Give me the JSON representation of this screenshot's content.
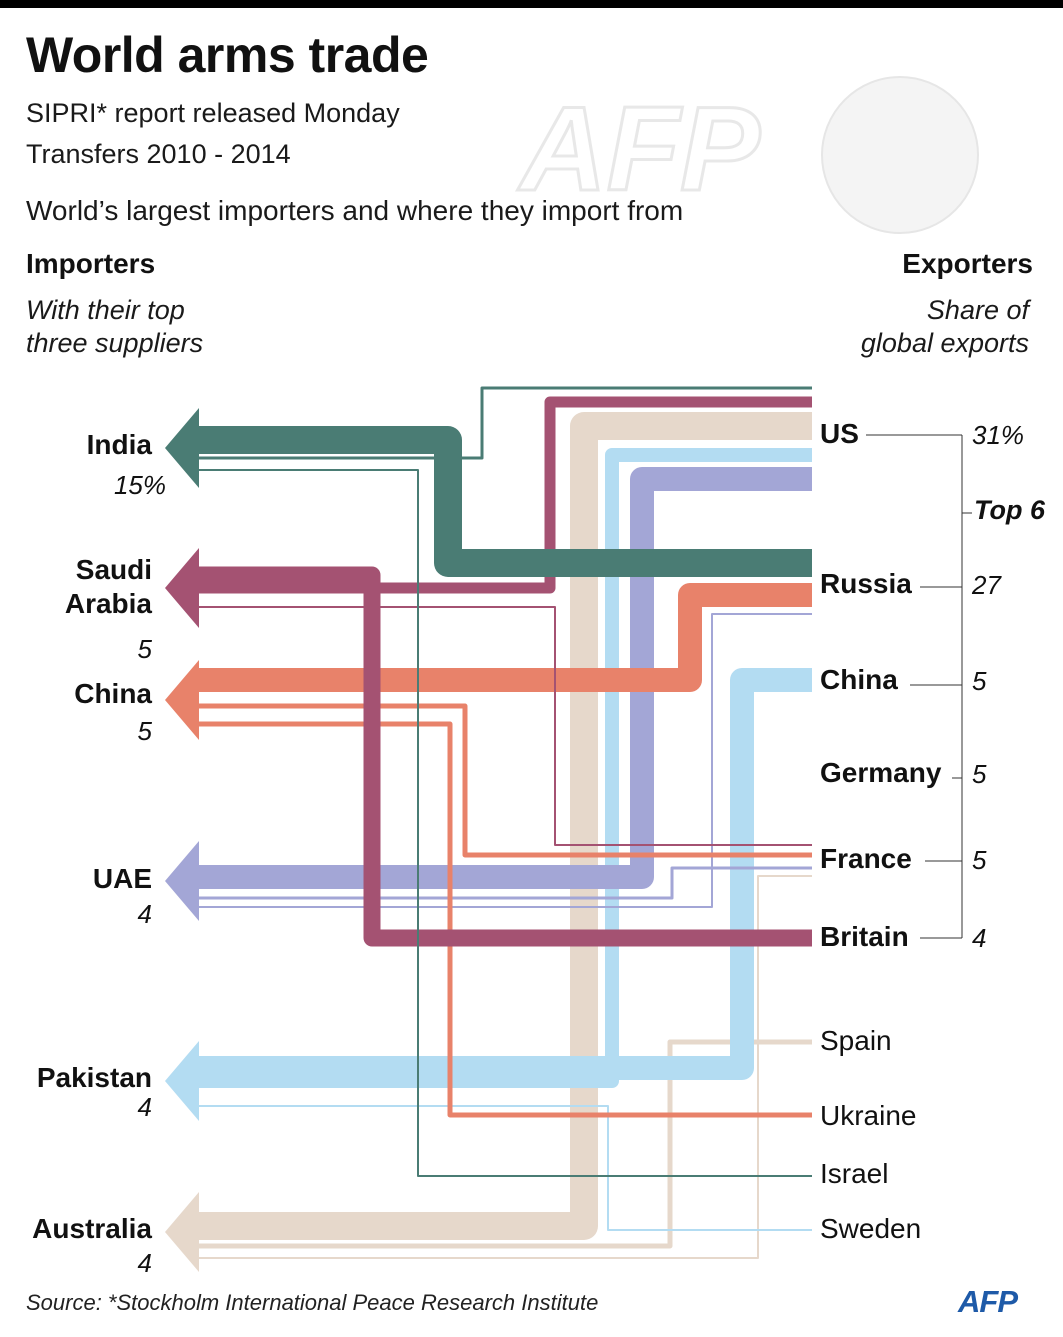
{
  "header": {
    "title": "World arms trade",
    "subtitle_1": "SIPRI* report released Monday",
    "subtitle_2": "Transfers 2010 - 2014",
    "subtitle_3": "World’s largest importers and where they import from"
  },
  "left_column": {
    "heading": "Importers",
    "note_line_1": "With their top",
    "note_line_2": "three suppliers"
  },
  "right_column": {
    "heading": "Exporters",
    "note_line_1": "Share of",
    "note_line_2": "global exports",
    "bracket_label": "Top 6"
  },
  "importers": [
    {
      "name_1": "India",
      "name_2": "",
      "share": "15%"
    },
    {
      "name_1": "Saudi",
      "name_2": "Arabia",
      "share": "5"
    },
    {
      "name_1": "China",
      "name_2": "",
      "share": "5"
    },
    {
      "name_1": "UAE",
      "name_2": "",
      "share": "4"
    },
    {
      "name_1": "Pakistan",
      "name_2": "",
      "share": "4"
    },
    {
      "name_1": "Australia",
      "name_2": "",
      "share": "4"
    }
  ],
  "exporters": [
    {
      "name": "US",
      "share": "31%",
      "top6": true
    },
    {
      "name": "Russia",
      "share": "27",
      "top6": true
    },
    {
      "name": "China",
      "share": "5",
      "top6": true
    },
    {
      "name": "Germany",
      "share": "5",
      "top6": true
    },
    {
      "name": "France",
      "share": "5",
      "top6": true
    },
    {
      "name": "Britain",
      "share": "4",
      "top6": true
    },
    {
      "name": "Spain",
      "share": "",
      "top6": false
    },
    {
      "name": "Ukraine",
      "share": "",
      "top6": false
    },
    {
      "name": "Israel",
      "share": "",
      "top6": false
    },
    {
      "name": "Sweden",
      "share": "",
      "top6": false
    }
  ],
  "flows": [
    {
      "importer": "India",
      "exporter": "Russia",
      "rank": 1
    },
    {
      "importer": "India",
      "exporter": "US",
      "rank": 2
    },
    {
      "importer": "India",
      "exporter": "Israel",
      "rank": 3
    },
    {
      "importer": "Saudi Arabia",
      "exporter": "Britain",
      "rank": 1
    },
    {
      "importer": "Saudi Arabia",
      "exporter": "US",
      "rank": 2
    },
    {
      "importer": "Saudi Arabia",
      "exporter": "France",
      "rank": 3
    },
    {
      "importer": "China",
      "exporter": "Russia",
      "rank": 1
    },
    {
      "importer": "China",
      "exporter": "France",
      "rank": 2
    },
    {
      "importer": "China",
      "exporter": "Ukraine",
      "rank": 3
    },
    {
      "importer": "UAE",
      "exporter": "US",
      "rank": 1
    },
    {
      "importer": "UAE",
      "exporter": "France",
      "rank": 2
    },
    {
      "importer": "UAE",
      "exporter": "Russia",
      "rank": 3
    },
    {
      "importer": "Pakistan",
      "exporter": "China",
      "rank": 1
    },
    {
      "importer": "Pakistan",
      "exporter": "US",
      "rank": 2
    },
    {
      "importer": "Pakistan",
      "exporter": "Sweden",
      "rank": 3
    },
    {
      "importer": "Australia",
      "exporter": "US",
      "rank": 1
    },
    {
      "importer": "Australia",
      "exporter": "Spain",
      "rank": 2
    },
    {
      "importer": "Australia",
      "exporter": "France",
      "rank": 3
    }
  ],
  "colors": {
    "India": "#4a7c74",
    "Saudi Arabia": "#a45272",
    "China": "#e8826a",
    "UAE": "#a3a6d6",
    "Pakistan": "#b3dcf2",
    "Australia": "#e6d8cb",
    "connector": "#333333"
  },
  "footer": {
    "source": "Source: *Stockholm International Peace Research Institute",
    "logo": "AFP"
  }
}
